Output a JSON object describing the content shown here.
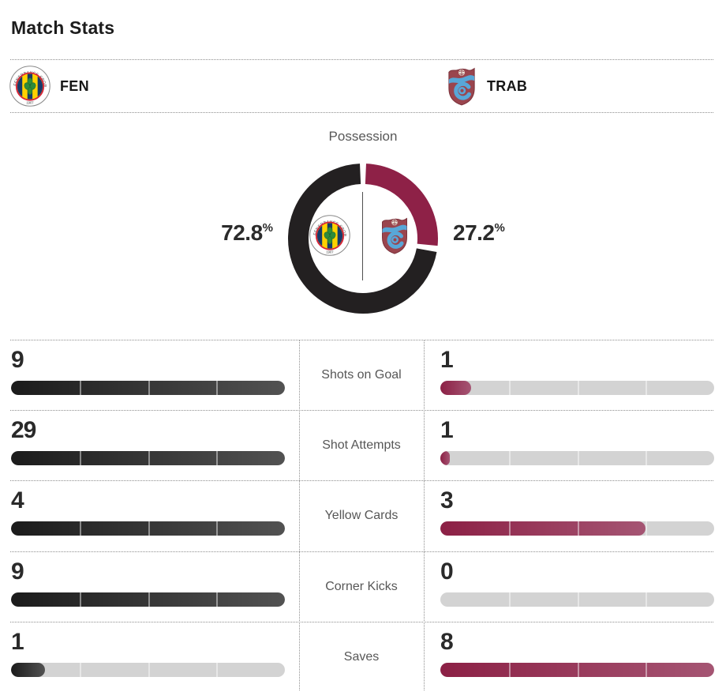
{
  "header": {
    "title": "Match Stats"
  },
  "teams": {
    "home": {
      "abbr": "FEN",
      "name": "Fenerbahce"
    },
    "away": {
      "abbr": "TRAB",
      "name": "Trabzonspor"
    }
  },
  "possession": {
    "title": "Possession",
    "home_value": "72.8",
    "away_value": "27.2",
    "unit": "%"
  },
  "stats": [
    {
      "label": "Shots on Goal",
      "home": 9,
      "away": 1
    },
    {
      "label": "Shot Attempts",
      "home": 29,
      "away": 1
    },
    {
      "label": "Yellow Cards",
      "home": 4,
      "away": 3
    },
    {
      "label": "Corner Kicks",
      "home": 9,
      "away": 0
    },
    {
      "label": "Saves",
      "home": 1,
      "away": 8
    }
  ],
  "colors": {
    "home_primary": "#232021",
    "away_primary": "#8e2147",
    "home_bar_start": "#1b1b1b",
    "home_bar_end": "#525252",
    "away_bar_start": "#8c2045",
    "away_bar_end": "#a55573",
    "track": "#d3d3d3"
  },
  "icons": {
    "home_logo": "fenerbahce-crest",
    "away_logo": "trabzonspor-crest"
  },
  "chart_data": [
    {
      "type": "pie",
      "style": "donut",
      "title": "Possession",
      "labels": [
        "FEN",
        "TRAB"
      ],
      "values": [
        72.8,
        27.2
      ],
      "unit": "%",
      "colors": [
        "#232021",
        "#8e2147"
      ],
      "legend_position": "inside-center-logos"
    },
    {
      "type": "bar",
      "title": "Match Stats",
      "layout": "paired-horizontal",
      "categories": [
        "Shots on Goal",
        "Shot Attempts",
        "Yellow Cards",
        "Corner Kicks",
        "Saves"
      ],
      "series": [
        {
          "name": "FEN",
          "values": [
            9,
            29,
            4,
            9,
            1
          ]
        },
        {
          "name": "TRAB",
          "values": [
            1,
            1,
            3,
            0,
            8
          ]
        }
      ],
      "note": "each bar pair is scaled so the larger value fills 100% of its track"
    }
  ]
}
